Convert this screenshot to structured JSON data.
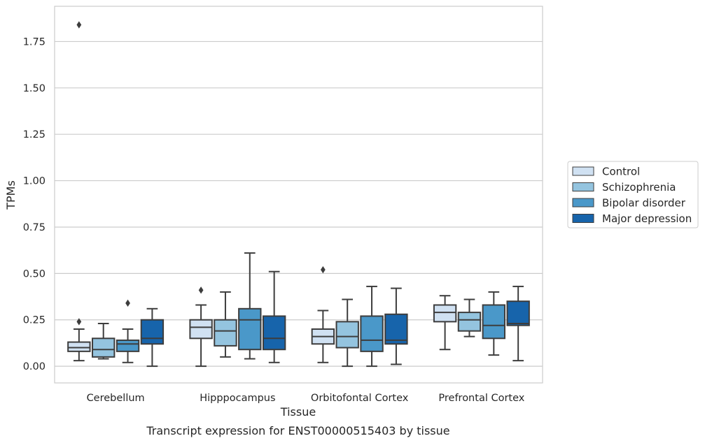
{
  "chart_data": {
    "type": "box",
    "xlabel": "Tissue",
    "ylabel": "TPMs",
    "caption": "Transcript expression for ENST00000515403 by tissue",
    "ylim": [
      -0.09,
      1.94
    ],
    "yticks": [
      0.0,
      0.25,
      0.5,
      0.75,
      1.0,
      1.25,
      1.5,
      1.75
    ],
    "ytick_labels": [
      "0.00",
      "0.25",
      "0.50",
      "0.75",
      "1.00",
      "1.25",
      "1.50",
      "1.75"
    ],
    "categories": [
      "Cerebellum",
      "Hipppocampus",
      "Orbitofontal Cortex",
      "Prefrontal Cortex"
    ],
    "grid": "horizontal",
    "legend_position": "right",
    "series": [
      {
        "name": "Control",
        "color": "#d0e1f2",
        "boxes": [
          {
            "whislo": 0.03,
            "q1": 0.08,
            "med": 0.1,
            "q3": 0.13,
            "whishi": 0.2,
            "fliers": [
              0.24,
              1.84
            ]
          },
          {
            "whislo": 0.0,
            "q1": 0.15,
            "med": 0.21,
            "q3": 0.25,
            "whishi": 0.33,
            "fliers": [
              0.41
            ]
          },
          {
            "whislo": 0.02,
            "q1": 0.12,
            "med": 0.16,
            "q3": 0.2,
            "whishi": 0.3,
            "fliers": [
              0.52
            ]
          },
          {
            "whislo": 0.09,
            "q1": 0.24,
            "med": 0.29,
            "q3": 0.33,
            "whishi": 0.38,
            "fliers": []
          }
        ]
      },
      {
        "name": "Schizophrenia",
        "color": "#94c4df",
        "boxes": [
          {
            "whislo": 0.04,
            "q1": 0.05,
            "med": 0.09,
            "q3": 0.15,
            "whishi": 0.23,
            "fliers": []
          },
          {
            "whislo": 0.05,
            "q1": 0.11,
            "med": 0.19,
            "q3": 0.25,
            "whishi": 0.4,
            "fliers": []
          },
          {
            "whislo": 0.0,
            "q1": 0.1,
            "med": 0.16,
            "q3": 0.24,
            "whishi": 0.36,
            "fliers": []
          },
          {
            "whislo": 0.16,
            "q1": 0.19,
            "med": 0.25,
            "q3": 0.29,
            "whishi": 0.36,
            "fliers": []
          }
        ]
      },
      {
        "name": "Bipolar disorder",
        "color": "#4a98c9",
        "boxes": [
          {
            "whislo": 0.02,
            "q1": 0.08,
            "med": 0.12,
            "q3": 0.14,
            "whishi": 0.2,
            "fliers": [
              0.34
            ]
          },
          {
            "whislo": 0.04,
            "q1": 0.09,
            "med": 0.25,
            "q3": 0.31,
            "whishi": 0.61,
            "fliers": []
          },
          {
            "whislo": 0.0,
            "q1": 0.08,
            "med": 0.14,
            "q3": 0.27,
            "whishi": 0.43,
            "fliers": []
          },
          {
            "whislo": 0.06,
            "q1": 0.15,
            "med": 0.22,
            "q3": 0.33,
            "whishi": 0.4,
            "fliers": []
          }
        ]
      },
      {
        "name": "Major depression",
        "color": "#1764ab",
        "boxes": [
          {
            "whislo": 0.0,
            "q1": 0.12,
            "med": 0.15,
            "q3": 0.25,
            "whishi": 0.31,
            "fliers": []
          },
          {
            "whislo": 0.02,
            "q1": 0.09,
            "med": 0.15,
            "q3": 0.27,
            "whishi": 0.51,
            "fliers": []
          },
          {
            "whislo": 0.01,
            "q1": 0.12,
            "med": 0.14,
            "q3": 0.28,
            "whishi": 0.42,
            "fliers": []
          },
          {
            "whislo": 0.03,
            "q1": 0.22,
            "med": 0.23,
            "q3": 0.35,
            "whishi": 0.43,
            "fliers": []
          }
        ]
      }
    ]
  }
}
